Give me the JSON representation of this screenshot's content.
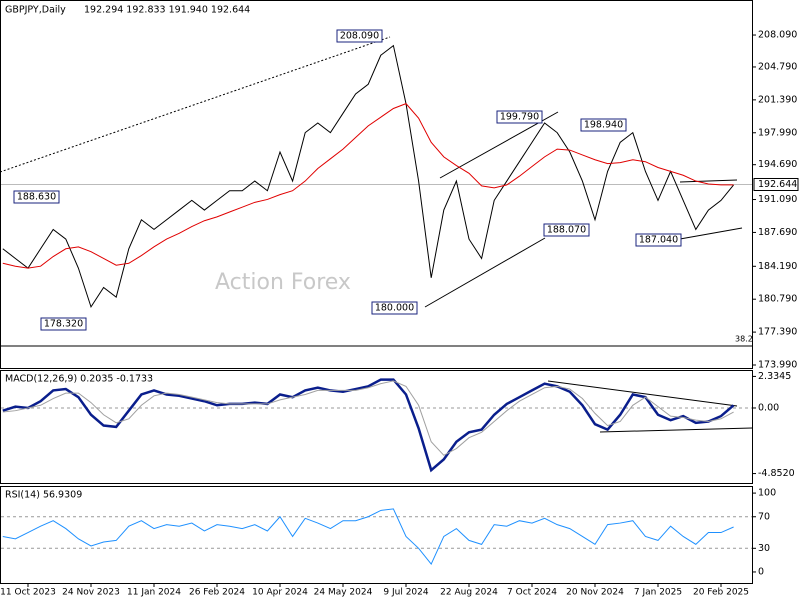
{
  "chart_data": [
    {
      "type": "line",
      "title": "GBPJPY,Daily",
      "subtitle": "192.294 192.833 191.940 192.644",
      "watermark": "Action Forex",
      "categories": [
        null,
        null,
        "11 Oct 2023",
        null,
        null,
        null,
        null,
        "24 Nov 2023",
        null,
        null,
        null,
        null,
        "11 Jan 2024",
        null,
        null,
        null,
        null,
        "26 Feb 2024",
        null,
        null,
        null,
        null,
        "10 Apr 2024",
        null,
        null,
        null,
        null,
        "24 May 2024",
        null,
        null,
        null,
        null,
        "9 Jul 2024",
        null,
        null,
        null,
        null,
        "22 Aug 2024",
        null,
        null,
        null,
        null,
        "7 Oct 2024",
        null,
        null,
        null,
        null,
        "20 Nov 2024",
        null,
        null,
        null,
        null,
        "7 Jan 2025",
        null,
        null,
        null,
        null,
        "20 Feb 2025",
        null
      ],
      "series": [
        {
          "color": "#000000",
          "values": [
            186,
            185,
            184,
            186,
            188,
            187,
            184,
            180,
            182,
            181,
            186,
            189,
            188,
            189,
            190,
            191,
            190,
            191,
            192,
            192,
            193,
            192,
            196,
            193,
            198,
            199,
            198,
            200,
            202,
            203,
            206,
            207,
            201,
            193,
            183,
            190,
            193,
            187,
            185,
            191,
            193,
            195,
            197,
            199,
            198,
            196,
            193,
            189,
            194,
            197,
            198,
            194,
            191,
            194,
            191,
            188,
            190,
            191,
            192.6
          ]
        },
        {
          "color": "#e00000",
          "values": [
            184.5,
            184.2,
            184.0,
            184.2,
            185.2,
            186.0,
            186.2,
            185.7,
            185.0,
            184.3,
            184.5,
            185.3,
            186.2,
            187.0,
            187.6,
            188.3,
            188.9,
            189.3,
            189.8,
            190.3,
            190.8,
            191.1,
            191.6,
            192.0,
            193.0,
            194.3,
            195.3,
            196.3,
            197.5,
            198.7,
            199.6,
            200.5,
            201.0,
            199.5,
            197.0,
            195.5,
            194.6,
            193.8,
            192.5,
            192.3,
            192.6,
            193.5,
            194.5,
            195.5,
            196.3,
            196.2,
            195.7,
            195.2,
            194.8,
            194.9,
            195.2,
            195.0,
            194.4,
            194.0,
            193.6,
            193.0,
            192.7,
            192.6,
            192.6
          ]
        }
      ],
      "ylim": [
        173.68,
        211.71
      ],
      "yticks": [
        {
          "value": 208.09,
          "label": "208.090"
        },
        {
          "value": 204.79,
          "label": "204.790"
        },
        {
          "value": 201.39,
          "label": "201.390"
        },
        {
          "value": 197.99,
          "label": "197.990"
        },
        {
          "value": 194.69,
          "label": "194.690"
        },
        {
          "value": 191.09,
          "label": "191.090"
        },
        {
          "value": 187.69,
          "label": "187.690"
        },
        {
          "value": 184.19,
          "label": "184.190"
        },
        {
          "value": 180.79,
          "label": "180.790"
        },
        {
          "value": 177.39,
          "label": "177.390"
        },
        {
          "value": 173.99,
          "label": "173.990"
        }
      ],
      "current_price": {
        "value": 192.644,
        "label": "192.644"
      },
      "level": {
        "value": 175.95,
        "label": "38.2"
      },
      "annotations": [
        {
          "value": 208.09,
          "label": "208.090"
        },
        {
          "value": 199.79,
          "label": "199.790"
        },
        {
          "value": 198.94,
          "label": "198.940"
        },
        {
          "value": 188.63,
          "label": "188.630"
        },
        {
          "value": 188.07,
          "label": "188.070"
        },
        {
          "value": 187.04,
          "label": "187.040"
        },
        {
          "value": 178.32,
          "label": "178.320"
        },
        {
          "value": 180,
          "label": "180.000"
        }
      ]
    },
    {
      "type": "line",
      "title": "MACD(12,26,9) 0.2035 -0.1733",
      "series": [
        {
          "color": "#0a1e8c",
          "values": [
            -0.2,
            0.1,
            0.0,
            0.5,
            1.3,
            1.4,
            0.8,
            -0.5,
            -1.3,
            -1.4,
            -0.2,
            1.0,
            1.3,
            1.0,
            0.9,
            0.7,
            0.5,
            0.2,
            0.3,
            0.3,
            0.4,
            0.3,
            1.0,
            0.8,
            1.3,
            1.5,
            1.3,
            1.2,
            1.4,
            1.6,
            2.1,
            2.1,
            1.0,
            -1.5,
            -4.6,
            -3.8,
            -2.5,
            -1.8,
            -1.6,
            -0.5,
            0.3,
            0.8,
            1.3,
            1.8,
            1.6,
            1.2,
            0.2,
            -1.2,
            -1.6,
            -0.5,
            1.0,
            0.8,
            -0.5,
            -0.9,
            -0.6,
            -1.1,
            -1.0,
            -0.6,
            0.2
          ]
        },
        {
          "color": "#a0a0a0",
          "values": [
            -0.3,
            -0.2,
            0.0,
            0.2,
            0.7,
            1.1,
            1.1,
            0.4,
            -0.5,
            -1.1,
            -0.8,
            0.2,
            0.9,
            1.1,
            1.0,
            0.8,
            0.6,
            0.4,
            0.3,
            0.3,
            0.3,
            0.3,
            0.6,
            0.8,
            1.0,
            1.3,
            1.3,
            1.3,
            1.3,
            1.5,
            1.8,
            2.0,
            1.6,
            0.2,
            -2.5,
            -3.5,
            -3.0,
            -2.2,
            -1.8,
            -1.0,
            -0.2,
            0.5,
            1.0,
            1.5,
            1.6,
            1.4,
            0.7,
            -0.4,
            -1.3,
            -1.0,
            0.2,
            0.8,
            0.1,
            -0.6,
            -0.7,
            -0.9,
            -1.0,
            -0.8,
            -0.3
          ]
        }
      ],
      "ylim": [
        -5.55,
        2.81
      ],
      "yticks": [
        2.3345,
        {
          "value": 0,
          "label": "0.00"
        },
        {
          "value": -4.852,
          "label": "-4.8520"
        }
      ]
    },
    {
      "type": "line",
      "title": "RSI(14) 56.9309",
      "series": [
        {
          "color": "#1e90ff",
          "values": [
            45,
            42,
            50,
            58,
            65,
            55,
            42,
            33,
            38,
            40,
            58,
            65,
            55,
            60,
            58,
            62,
            52,
            60,
            58,
            55,
            60,
            52,
            70,
            45,
            68,
            62,
            55,
            65,
            65,
            70,
            78,
            80,
            45,
            30,
            10,
            45,
            55,
            40,
            35,
            60,
            58,
            65,
            62,
            68,
            60,
            55,
            45,
            35,
            60,
            62,
            65,
            45,
            40,
            58,
            45,
            35,
            50,
            50,
            57
          ]
        }
      ],
      "ylim": [
        -14,
        109
      ],
      "yticks": [
        0,
        30,
        70,
        100
      ]
    }
  ]
}
